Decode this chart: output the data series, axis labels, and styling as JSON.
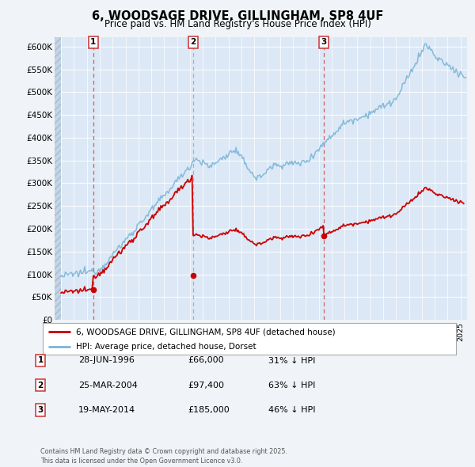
{
  "title": "6, WOODSAGE DRIVE, GILLINGHAM, SP8 4UF",
  "subtitle": "Price paid vs. HM Land Registry's House Price Index (HPI)",
  "background_color": "#f0f4f8",
  "plot_bg_color": "#dce8f5",
  "legend_label_red": "6, WOODSAGE DRIVE, GILLINGHAM, SP8 4UF (detached house)",
  "legend_label_blue": "HPI: Average price, detached house, Dorset",
  "sales": [
    {
      "date_year": 1996.49,
      "price": 66000,
      "label": "1"
    },
    {
      "date_year": 2004.23,
      "price": 97400,
      "label": "2"
    },
    {
      "date_year": 2014.38,
      "price": 185000,
      "label": "3"
    }
  ],
  "sale_info": [
    {
      "num": "1",
      "date": "28-JUN-1996",
      "price": "£66,000",
      "note": "31% ↓ HPI"
    },
    {
      "num": "2",
      "date": "25-MAR-2004",
      "price": "£97,400",
      "note": "63% ↓ HPI"
    },
    {
      "num": "3",
      "date": "19-MAY-2014",
      "price": "£185,000",
      "note": "46% ↓ HPI"
    }
  ],
  "footer": "Contains HM Land Registry data © Crown copyright and database right 2025.\nThis data is licensed under the Open Government Licence v3.0.",
  "ylim": [
    0,
    620000
  ],
  "yticks": [
    0,
    50000,
    100000,
    150000,
    200000,
    250000,
    300000,
    350000,
    400000,
    450000,
    500000,
    550000,
    600000
  ],
  "ytick_labels": [
    "£0",
    "£50K",
    "£100K",
    "£150K",
    "£200K",
    "£250K",
    "£300K",
    "£350K",
    "£400K",
    "£450K",
    "£500K",
    "£550K",
    "£600K"
  ],
  "xlim_start": 1993.5,
  "xlim_end": 2025.5,
  "red_line_color": "#cc0000",
  "blue_line_color": "#7ab5d8",
  "dot_color_red": "#cc0000",
  "hatch_color": "#b0c4d8"
}
